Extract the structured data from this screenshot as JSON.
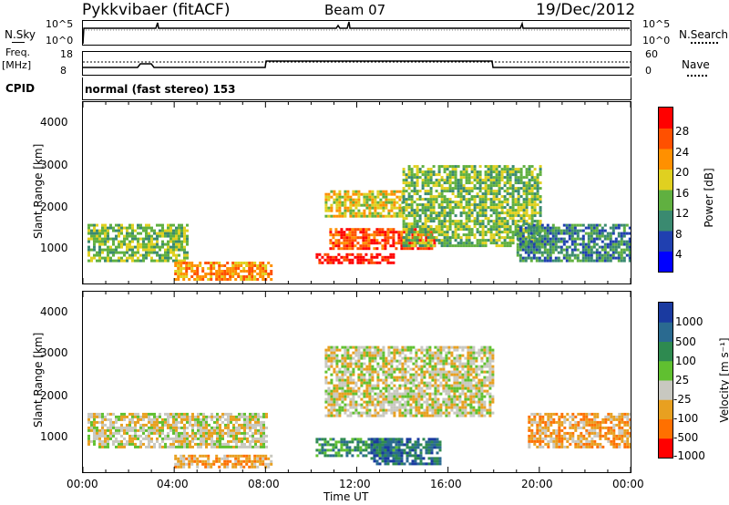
{
  "header": {
    "radar": "Pykkvibaer (fitACF)",
    "beam": "Beam 07",
    "date": "19/Dec/2012"
  },
  "noise_panel": {
    "left_label": "N.Sky",
    "right_label": "N.Search",
    "left_ticks": [
      "10^5",
      "10^0"
    ],
    "right_ticks": [
      "10^5",
      "10^0"
    ]
  },
  "freq_panel": {
    "left_label": "Freq.",
    "left_unit": "[MHz]",
    "right_label": "Nave",
    "left_ticks": [
      "18",
      "8"
    ],
    "right_ticks": [
      "60",
      "0"
    ]
  },
  "cpid": {
    "label": "CPID",
    "value": "normal (fast stereo) 153"
  },
  "power_panel": {
    "ylabel": "Slant Range [km]",
    "yticks": [
      "4000",
      "3000",
      "2000",
      "1000"
    ],
    "colorbar_label": "Power [dB]",
    "colorbar_ticks": [
      "28",
      "24",
      "20",
      "16",
      "12",
      "8",
      "4"
    ],
    "colors": [
      "#0000ff",
      "#2040b0",
      "#3a8a70",
      "#60b040",
      "#e0d020",
      "#ff9000",
      "#ff5000",
      "#ff0000"
    ]
  },
  "velocity_panel": {
    "ylabel": "Slant Range [km]",
    "yticks": [
      "4000",
      "3000",
      "2000",
      "1000"
    ],
    "colorbar_label": "Velocity [m s⁻¹]",
    "colorbar_ticks": [
      "1000",
      "500",
      "100",
      "25",
      "-25",
      "-100",
      "-500",
      "-1000"
    ],
    "colors": [
      "#1a3aa0",
      "#2a6a90",
      "#2e8a50",
      "#60c030",
      "#c8c8c0",
      "#e8a020",
      "#ff7000",
      "#ff0000"
    ]
  },
  "xaxis": {
    "ticks": [
      "00:00",
      "04:00",
      "08:00",
      "12:00",
      "16:00",
      "20:00",
      "00:00"
    ],
    "label": "Time UT"
  },
  "chart_data": {
    "type": "heatmap",
    "x_range_hours": [
      0,
      24
    ],
    "y_range_km": [
      180,
      4500
    ],
    "power_regions_db": [
      {
        "t": [
          0.2,
          4.6
        ],
        "r": [
          700,
          1600
        ],
        "level": 12
      },
      {
        "t": [
          4.0,
          8.2
        ],
        "r": [
          300,
          700
        ],
        "level": 22
      },
      {
        "t": [
          10.2,
          13.6
        ],
        "r": [
          700,
          900
        ],
        "level": 28
      },
      {
        "t": [
          10.8,
          15.4
        ],
        "r": [
          1000,
          1500
        ],
        "level": 24
      },
      {
        "t": [
          10.6,
          14.0
        ],
        "r": [
          1800,
          2400
        ],
        "level": 16
      },
      {
        "t": [
          14.0,
          20.0
        ],
        "r": [
          1100,
          3000
        ],
        "level": 12
      },
      {
        "t": [
          19.0,
          24.0
        ],
        "r": [
          700,
          1600
        ],
        "level": 10
      }
    ],
    "velocity_regions_ms": [
      {
        "t": [
          0.2,
          8.0
        ],
        "r": [
          800,
          1600
        ],
        "level": 0
      },
      {
        "t": [
          4.0,
          8.2
        ],
        "r": [
          300,
          600
        ],
        "level": -100
      },
      {
        "t": [
          10.2,
          13.8
        ],
        "r": [
          600,
          1000
        ],
        "level": 100
      },
      {
        "t": [
          12.6,
          15.6
        ],
        "r": [
          400,
          1000
        ],
        "level": 500
      },
      {
        "t": [
          10.6,
          18.0
        ],
        "r": [
          1500,
          3200
        ],
        "level": 0
      },
      {
        "t": [
          19.5,
          24.0
        ],
        "r": [
          800,
          1600
        ],
        "level": -100
      }
    ],
    "freq_mhz_segments": [
      {
        "t": [
          0,
          8
        ],
        "value": 9.5
      },
      {
        "t": [
          8,
          18
        ],
        "value": 12.0
      },
      {
        "t": [
          18,
          24
        ],
        "value": 9.5
      }
    ]
  }
}
